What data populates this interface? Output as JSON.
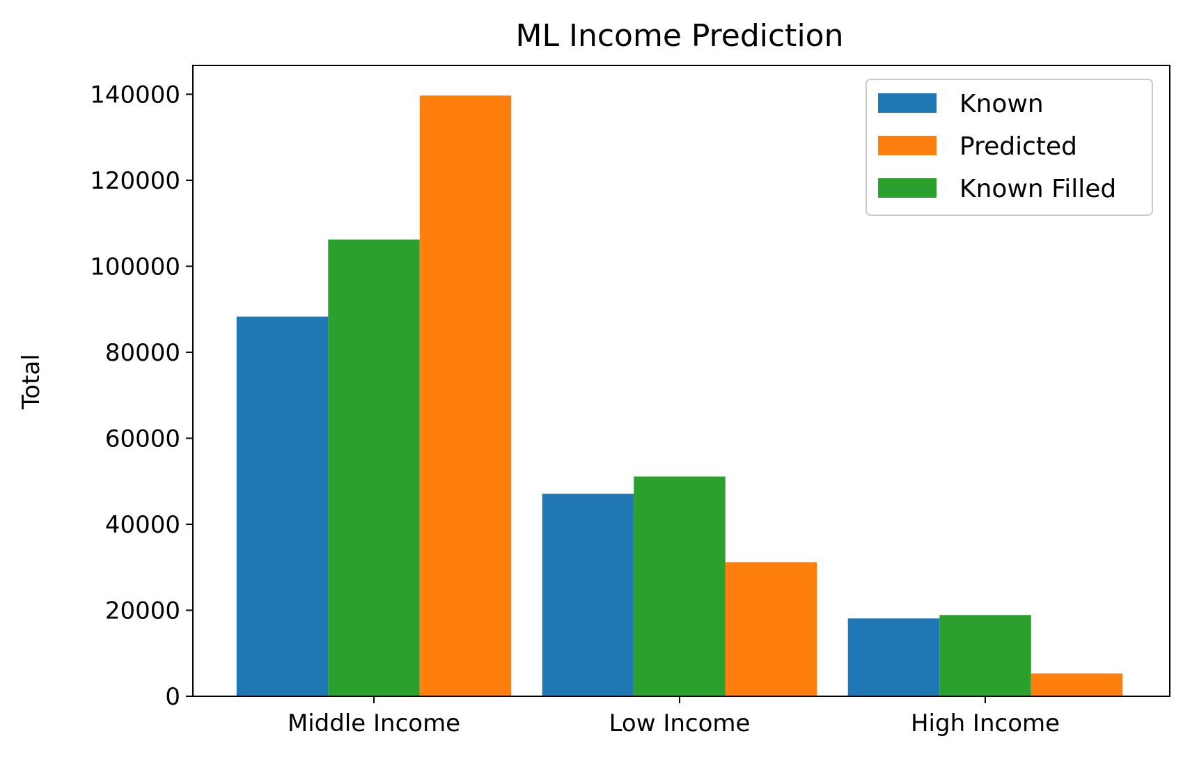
{
  "chart_data": {
    "type": "bar",
    "title": "ML Income Prediction",
    "xlabel": "",
    "ylabel": "Total",
    "categories": [
      "Middle Income",
      "Low Income",
      "High Income"
    ],
    "series": [
      {
        "name": "Known",
        "color": "#1f77b4",
        "values": [
          88300,
          47100,
          18100
        ]
      },
      {
        "name": "Known Filled",
        "color": "#2ca02c",
        "values": [
          106200,
          51100,
          18900
        ]
      },
      {
        "name": "Predicted",
        "color": "#ff7f0e",
        "values": [
          139700,
          31200,
          5300
        ]
      }
    ],
    "legend_order": [
      "Known",
      "Predicted",
      "Known Filled"
    ],
    "legend_position": "top-right",
    "y_ticks": [
      "0",
      "20000",
      "40000",
      "60000",
      "80000",
      "100000",
      "120000",
      "140000"
    ],
    "ylim": [
      0,
      146700
    ],
    "grid": false
  }
}
